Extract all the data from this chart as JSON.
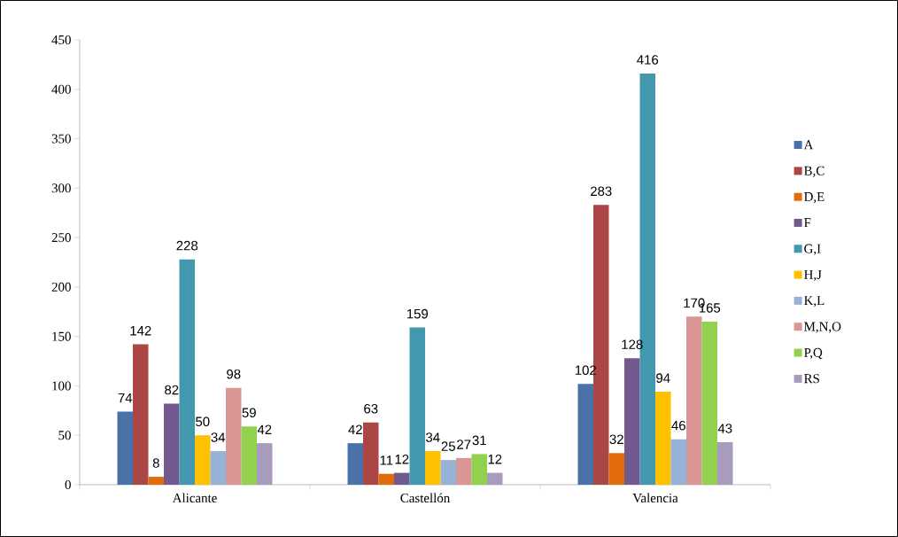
{
  "chart_data": {
    "type": "bar",
    "categories": [
      "Alicante",
      "Castellón",
      "Valencia"
    ],
    "series": [
      {
        "name": "A",
        "color": "#4a72a8",
        "values": [
          74,
          42,
          102
        ]
      },
      {
        "name": "B,C",
        "color": "#aa4643",
        "values": [
          142,
          63,
          283
        ]
      },
      {
        "name": "D,E",
        "color": "#e36c0a",
        "values": [
          8,
          11,
          32
        ]
      },
      {
        "name": "F",
        "color": "#71588f",
        "values": [
          82,
          12,
          128
        ]
      },
      {
        "name": "G,I",
        "color": "#4198af",
        "values": [
          228,
          159,
          416
        ]
      },
      {
        "name": "H,J",
        "color": "#ffc000",
        "values": [
          50,
          34,
          94
        ]
      },
      {
        "name": "K,L",
        "color": "#95b3d7",
        "values": [
          34,
          25,
          46
        ]
      },
      {
        "name": "M,N,O",
        "color": "#d99694",
        "values": [
          98,
          27,
          170
        ]
      },
      {
        "name": "P,Q",
        "color": "#92d050",
        "values": [
          59,
          31,
          165
        ]
      },
      {
        "name": "RS",
        "color": "#a99bbd",
        "values": [
          42,
          12,
          43
        ]
      }
    ],
    "ylim": [
      0,
      450
    ],
    "yticks": [
      0,
      50,
      100,
      150,
      200,
      250,
      300,
      350,
      400,
      450
    ],
    "data_labels": true,
    "legend": "right",
    "grid": false
  }
}
